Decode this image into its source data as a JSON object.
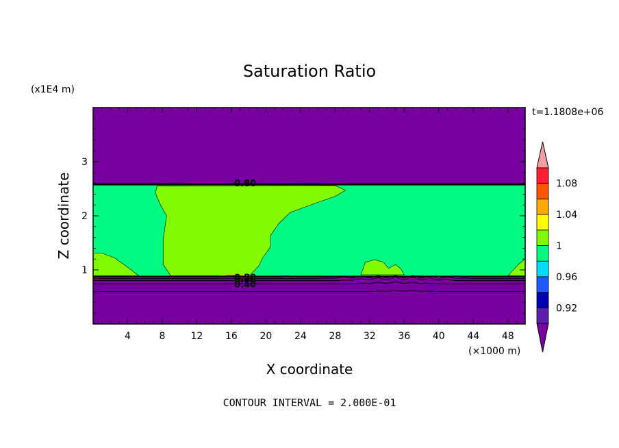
{
  "chart_data": {
    "type": "heatmap",
    "title": "Saturation Ratio",
    "xlabel": "X coordinate",
    "ylabel": "Z coordinate",
    "x_unit": "(×1000 m)",
    "y_unit": "(x1E4 m)",
    "time_label": "t=1.1808e+06",
    "footer": "CONTOUR INTERVAL = 2.000E-01",
    "xlim": [
      0,
      50
    ],
    "ylim": [
      0,
      4
    ],
    "x_ticks": [
      4,
      8,
      12,
      16,
      20,
      24,
      28,
      32,
      36,
      40,
      44,
      48
    ],
    "y_ticks": [
      1,
      2,
      3
    ],
    "contour_labels": [
      {
        "text": "0.80",
        "x": 17.6,
        "z": 2.61
      },
      {
        "text": "0.60",
        "x": 17.6,
        "z": 2.61
      },
      {
        "text": "0.80",
        "x": 17.6,
        "z": 0.87
      },
      {
        "text": "0.60",
        "x": 17.6,
        "z": 0.83
      },
      {
        "text": "0.40",
        "x": 17.6,
        "z": 0.74
      }
    ],
    "colorbar": {
      "levels": [
        0.9,
        0.92,
        0.94,
        0.96,
        0.98,
        1.0,
        1.02,
        1.04,
        1.06,
        1.08,
        1.1
      ],
      "colors": [
        "#5d1eae",
        "#0000b4",
        "#1e5aff",
        "#00dcff",
        "#00fa82",
        "#82fa00",
        "#ffff00",
        "#ffaa00",
        "#ff5500",
        "#ff1e32"
      ],
      "under_color": "#7800a0",
      "over_color": "#f0a0a0",
      "tick_labels": [
        {
          "value": 0.92,
          "label": "0.92"
        },
        {
          "value": 0.96,
          "label": "0.96"
        },
        {
          "value": 1.0,
          "label": "1"
        },
        {
          "value": 1.04,
          "label": "1.04"
        },
        {
          "value": 1.08,
          "label": "1.08"
        }
      ]
    }
  }
}
